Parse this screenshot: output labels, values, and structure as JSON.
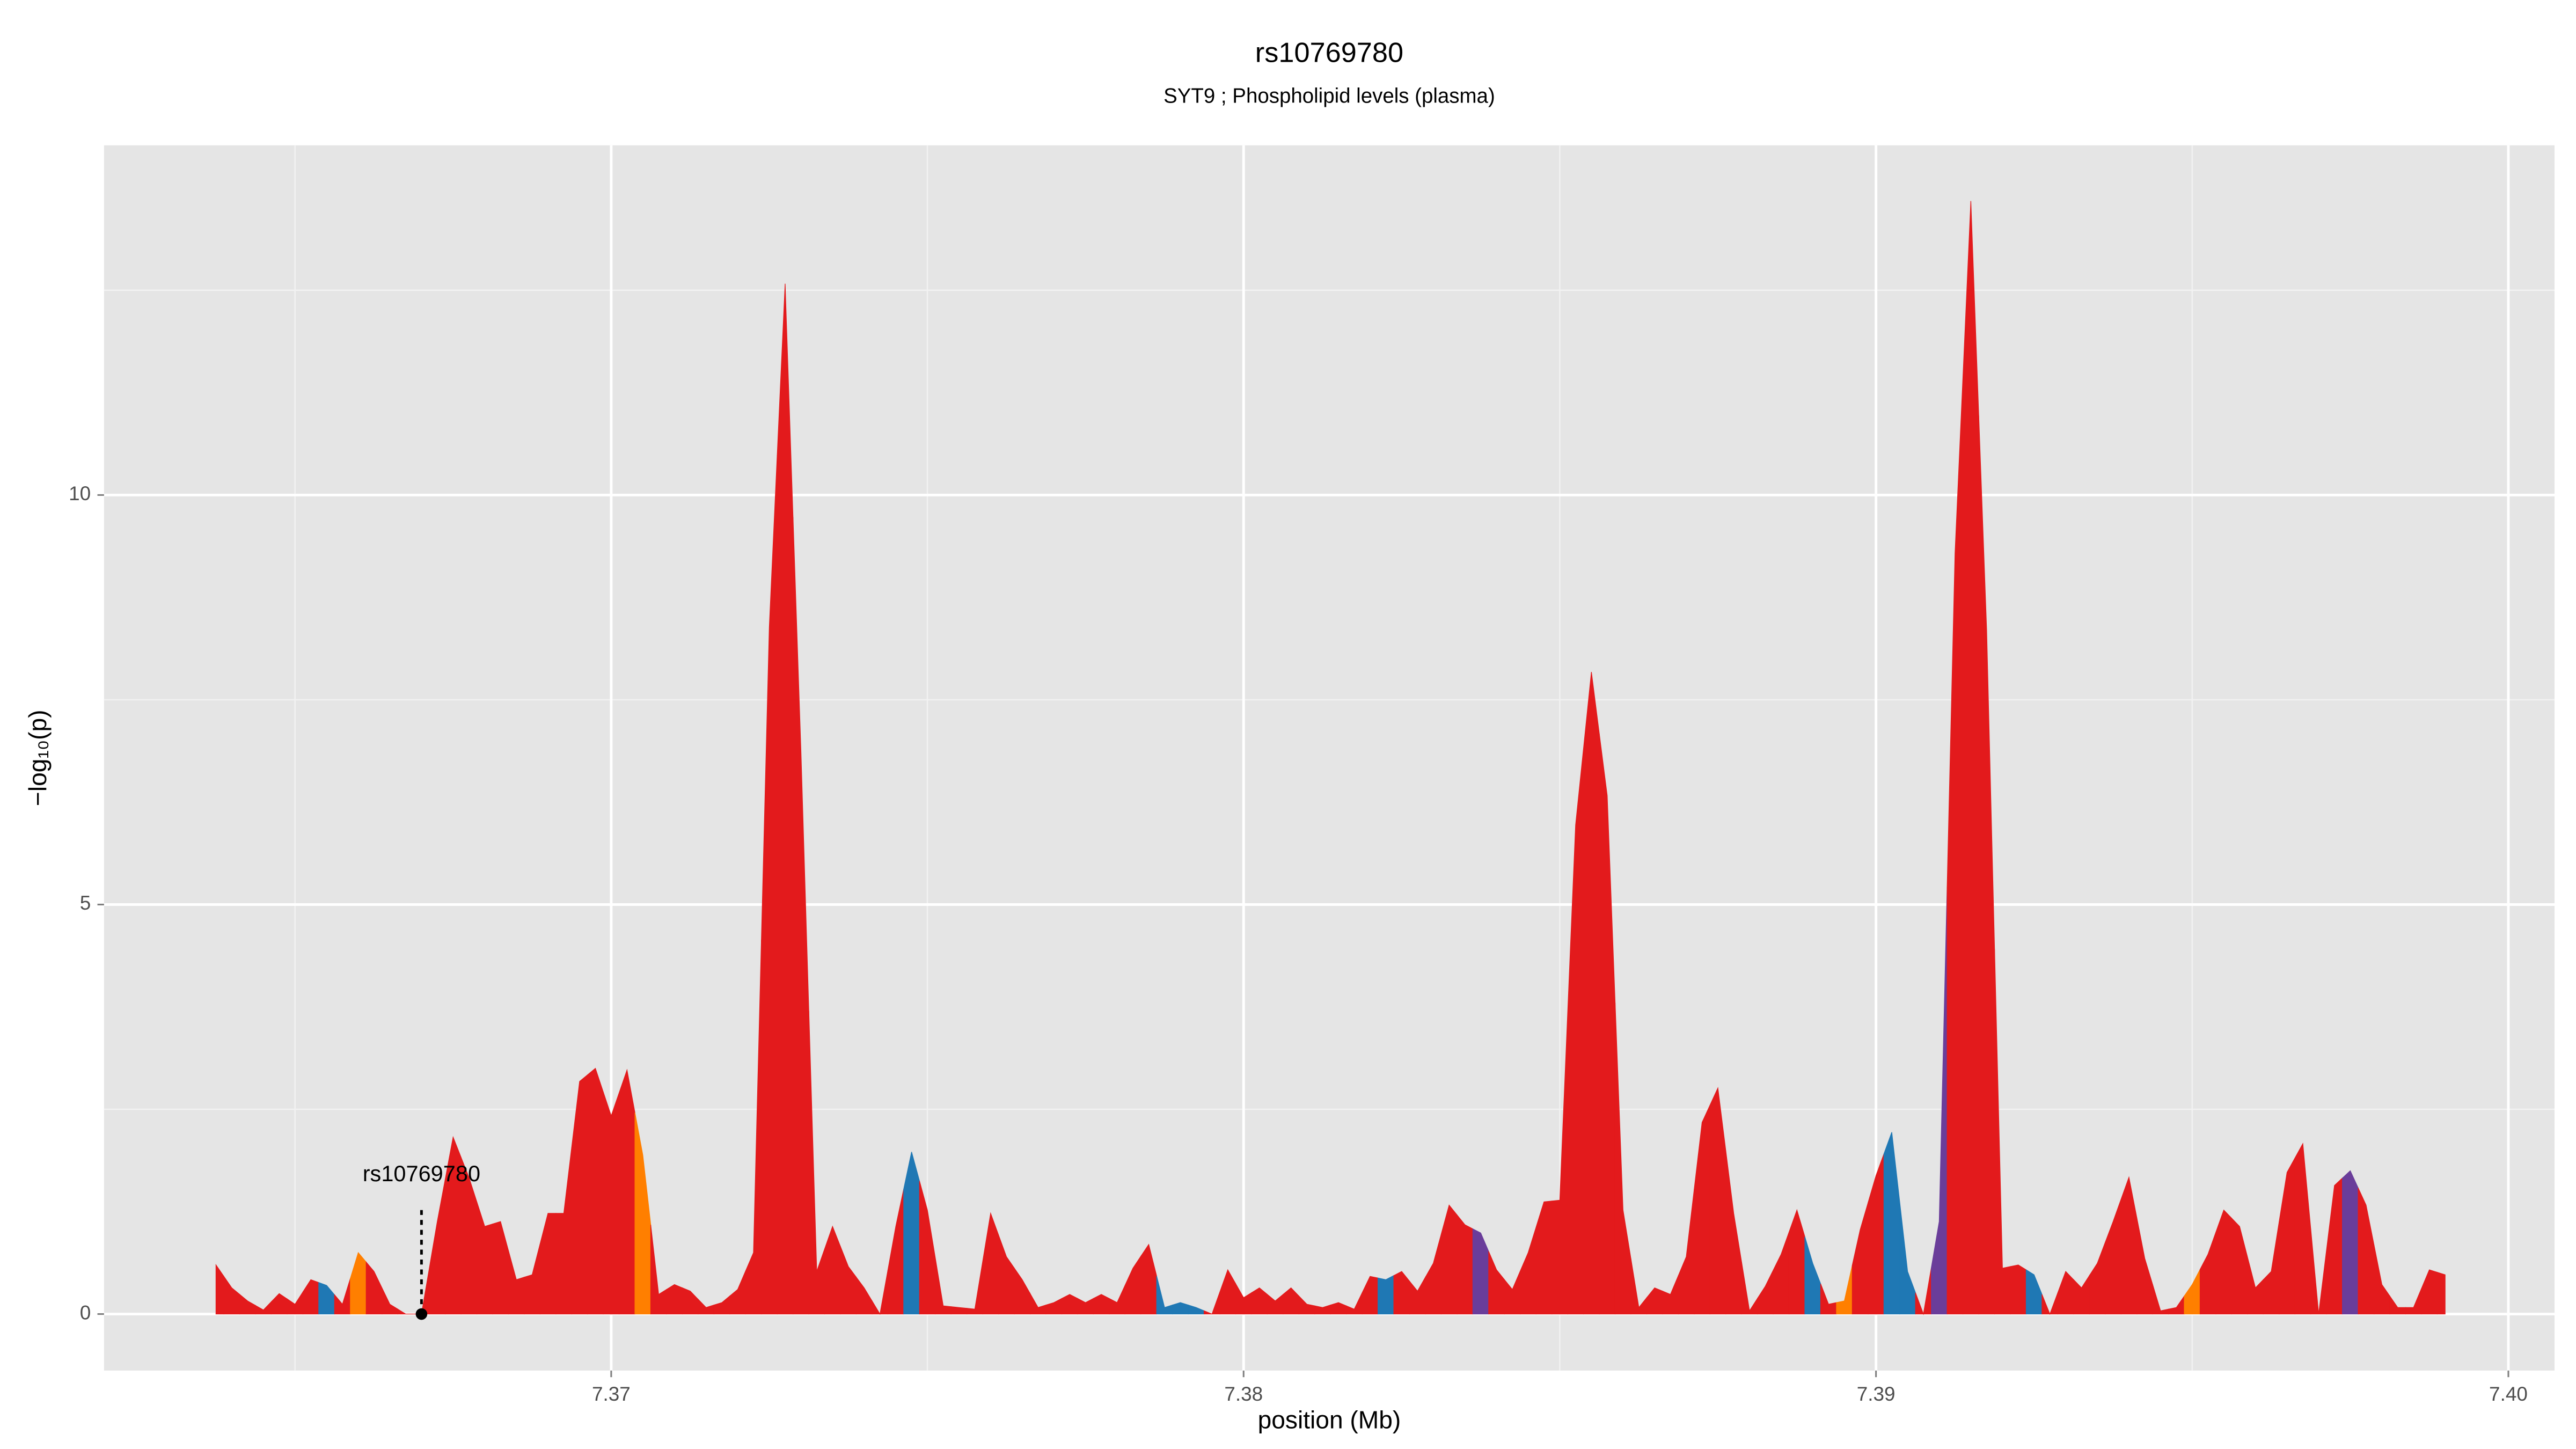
{
  "chart_data": {
    "type": "area",
    "title": "rs10769780",
    "subtitle": "SYT9 ; Phospholipid levels (plasma)",
    "x_label": "position (Mb)",
    "y_label": "−log₁₀(p)",
    "xlim": [
      7.36198,
      7.40073
    ],
    "ylim": [
      -0.69,
      14.27
    ],
    "xticks": [
      7.37,
      7.38,
      7.39,
      {
        "value": 7.4,
        "label": "7.40"
      }
    ],
    "yticks": [
      0,
      5,
      10
    ],
    "xminor": [
      7.365,
      7.375,
      7.385,
      7.395
    ],
    "yminor": [
      2.5,
      7.5,
      12.5
    ],
    "grid": true,
    "highlight": {
      "label": "rs10769780",
      "x": 7.367,
      "value": 0
    },
    "x": [
      7.36375,
      7.364,
      7.36425,
      7.3645,
      7.36475,
      7.365,
      7.36525,
      7.3655,
      7.36575,
      7.366,
      7.36625,
      7.3665,
      7.36675,
      7.367,
      7.36725,
      7.3675,
      7.36775,
      7.368,
      7.36825,
      7.3685,
      7.36875,
      7.369,
      7.36925,
      7.3695,
      7.36975,
      7.37,
      7.37025,
      7.3705,
      7.37075,
      7.371,
      7.37125,
      7.3715,
      7.37175,
      7.372,
      7.37225,
      7.3725,
      7.37275,
      7.373,
      7.37325,
      7.3735,
      7.37375,
      7.374,
      7.37425,
      7.3745,
      7.37475,
      7.375,
      7.37525,
      7.3755,
      7.37575,
      7.376,
      7.37625,
      7.3765,
      7.37675,
      7.377,
      7.37725,
      7.3775,
      7.37775,
      7.378,
      7.37825,
      7.3785,
      7.37875,
      7.379,
      7.37925,
      7.3795,
      7.37975,
      7.38,
      7.38025,
      7.3805,
      7.38075,
      7.381,
      7.38125,
      7.3815,
      7.38175,
      7.382,
      7.38225,
      7.3825,
      7.38275,
      7.383,
      7.38325,
      7.3835,
      7.38375,
      7.384,
      7.38425,
      7.3845,
      7.38475,
      7.385,
      7.38525,
      7.3855,
      7.38575,
      7.386,
      7.38625,
      7.3865,
      7.38675,
      7.387,
      7.38725,
      7.3875,
      7.38775,
      7.388,
      7.38825,
      7.3885,
      7.38875,
      7.389,
      7.38925,
      7.3895,
      7.38975,
      7.39,
      7.39025,
      7.3905,
      7.39075,
      7.391,
      7.39125,
      7.3915,
      7.39175,
      7.392,
      7.39225,
      7.3925,
      7.39275,
      7.393,
      7.39325,
      7.3935,
      7.39375,
      7.394,
      7.39425,
      7.3945,
      7.39475,
      7.395,
      7.39525,
      7.3955,
      7.39575,
      7.396,
      7.39625,
      7.3965,
      7.39675,
      7.397,
      7.39725,
      7.3975,
      7.39775,
      7.398,
      7.39825,
      7.3985,
      7.39875,
      7.399
    ],
    "values": [
      0.6,
      0.32,
      0.16,
      0.05,
      0.25,
      0.12,
      0.42,
      0.35,
      0.12,
      0.75,
      0.52,
      0.12,
      0,
      0,
      1.13,
      2.16,
      1.67,
      1.07,
      1.13,
      0.42,
      0.48,
      1.23,
      1.23,
      2.84,
      3.0,
      2.42,
      2.98,
      1.94,
      0.24,
      0.36,
      0.28,
      0.08,
      0.14,
      0.3,
      0.75,
      8.39,
      12.58,
      6.88,
      0.52,
      1.07,
      0.58,
      0.32,
      0,
      1.07,
      1.98,
      1.27,
      0.1,
      0.08,
      0.06,
      1.23,
      0.7,
      0.42,
      0.08,
      0.14,
      0.24,
      0.14,
      0.24,
      0.14,
      0.56,
      0.85,
      0.08,
      0.14,
      0.08,
      0,
      0.54,
      0.2,
      0.32,
      0.16,
      0.32,
      0.12,
      0.08,
      0.14,
      0.06,
      0.46,
      0.42,
      0.52,
      0.28,
      0.62,
      1.33,
      1.09,
      0.99,
      0.54,
      0.3,
      0.75,
      1.37,
      1.39,
      5.97,
      7.84,
      6.33,
      1.27,
      0.08,
      0.32,
      0.24,
      0.7,
      2.34,
      2.76,
      1.23,
      0.04,
      0.34,
      0.73,
      1.27,
      0.62,
      0.12,
      0.16,
      1.03,
      1.69,
      2.22,
      0.52,
      0,
      1.13,
      9.29,
      13.59,
      8.35,
      0.56,
      0.6,
      0.48,
      0,
      0.52,
      0.32,
      0.62,
      1.13,
      1.67,
      0.68,
      0.04,
      0.08,
      0.36,
      0.73,
      1.27,
      1.07,
      0.32,
      0.52,
      1.73,
      2.08,
      0,
      1.57,
      1.75,
      1.33,
      0.36,
      0.08,
      0.08,
      0.54,
      0.48
    ],
    "colors": [
      "#e31a1c",
      "#e31a1c",
      "#e31a1c",
      "#e31a1c",
      "#e31a1c",
      "#e31a1c",
      "#e31a1c",
      "#1f78b4",
      "#e31a1c",
      "#ff7f00",
      "#e31a1c",
      "#e31a1c",
      "#e31a1c",
      "#e31a1c",
      "#e31a1c",
      "#e31a1c",
      "#e31a1c",
      "#e31a1c",
      "#e31a1c",
      "#e31a1c",
      "#e31a1c",
      "#e31a1c",
      "#e31a1c",
      "#e31a1c",
      "#e31a1c",
      "#e31a1c",
      "#e31a1c",
      "#ff7f00",
      "#e31a1c",
      "#e31a1c",
      "#e31a1c",
      "#e31a1c",
      "#e31a1c",
      "#e31a1c",
      "#e31a1c",
      "#e31a1c",
      "#e31a1c",
      "#e31a1c",
      "#e31a1c",
      "#e31a1c",
      "#e31a1c",
      "#e31a1c",
      "#e31a1c",
      "#e31a1c",
      "#1f78b4",
      "#e31a1c",
      "#e31a1c",
      "#e31a1c",
      "#e31a1c",
      "#e31a1c",
      "#e31a1c",
      "#e31a1c",
      "#e31a1c",
      "#e31a1c",
      "#e31a1c",
      "#e31a1c",
      "#e31a1c",
      "#e31a1c",
      "#e31a1c",
      "#e31a1c",
      "#1f78b4",
      "#1f78b4",
      "#1f78b4",
      "#e31a1c",
      "#e31a1c",
      "#e31a1c",
      "#e31a1c",
      "#e31a1c",
      "#e31a1c",
      "#e31a1c",
      "#e31a1c",
      "#e31a1c",
      "#e31a1c",
      "#e31a1c",
      "#1f78b4",
      "#e31a1c",
      "#e31a1c",
      "#e31a1c",
      "#e31a1c",
      "#e31a1c",
      "#6a3d9a",
      "#e31a1c",
      "#e31a1c",
      "#e31a1c",
      "#e31a1c",
      "#e31a1c",
      "#e31a1c",
      "#e31a1c",
      "#e31a1c",
      "#e31a1c",
      "#e31a1c",
      "#e31a1c",
      "#e31a1c",
      "#e31a1c",
      "#e31a1c",
      "#e31a1c",
      "#e31a1c",
      "#e31a1c",
      "#e31a1c",
      "#e31a1c",
      "#e31a1c",
      "#1f78b4",
      "#e31a1c",
      "#ff7f00",
      "#e31a1c",
      "#e31a1c",
      "#1f78b4",
      "#1f78b4",
      "#e31a1c",
      "#6a3d9a",
      "#e31a1c",
      "#e31a1c",
      "#e31a1c",
      "#e31a1c",
      "#e31a1c",
      "#1f78b4",
      "#e31a1c",
      "#e31a1c",
      "#e31a1c",
      "#e31a1c",
      "#e31a1c",
      "#e31a1c",
      "#e31a1c",
      "#e31a1c",
      "#e31a1c",
      "#ff7f00",
      "#e31a1c",
      "#e31a1c",
      "#e31a1c",
      "#e31a1c",
      "#e31a1c",
      "#e31a1c",
      "#e31a1c",
      "#e31a1c",
      "#e31a1c",
      "#6a3d9a",
      "#e31a1c",
      "#e31a1c",
      "#e31a1c",
      "#e31a1c",
      "#e31a1c",
      "#e31a1c"
    ]
  }
}
